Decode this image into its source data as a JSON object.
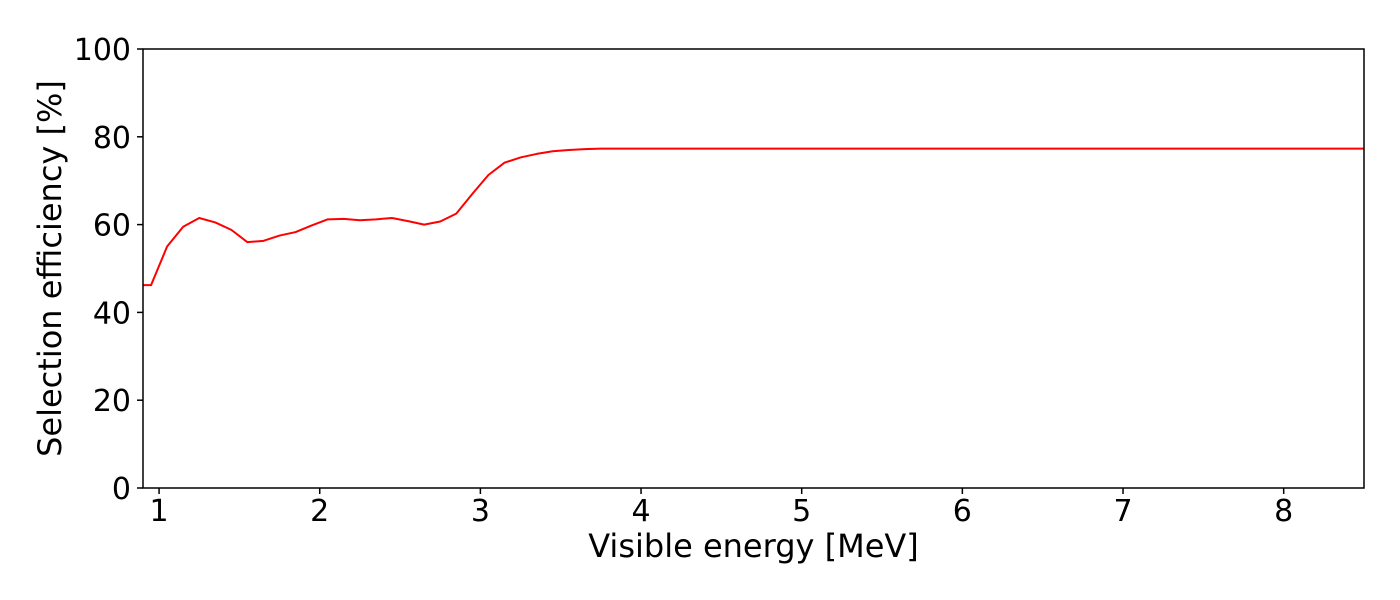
{
  "chart_data": {
    "type": "line",
    "title": "",
    "xlabel": "Visible energy [MeV]",
    "ylabel": "Selection efficiency [%]",
    "xlim": [
      0.9,
      8.5
    ],
    "ylim": [
      0,
      100
    ],
    "x_ticks": [
      1,
      2,
      3,
      4,
      5,
      6,
      7,
      8
    ],
    "y_ticks": [
      0,
      20,
      40,
      60,
      80,
      100
    ],
    "grid": false,
    "legend": "none",
    "series": [
      {
        "color": "#ff0000",
        "x": [
          0.9,
          0.95,
          1.05,
          1.15,
          1.25,
          1.35,
          1.45,
          1.55,
          1.65,
          1.75,
          1.85,
          1.95,
          2.05,
          2.15,
          2.25,
          2.35,
          2.45,
          2.55,
          2.65,
          2.75,
          2.85,
          2.95,
          3.05,
          3.15,
          3.25,
          3.35,
          3.45,
          3.55,
          3.65,
          3.75,
          3.85,
          3.95,
          4.05,
          4.5,
          5.0,
          5.5,
          6.0,
          6.5,
          7.0,
          7.5,
          8.0,
          8.5
        ],
        "y": [
          46.2,
          46.2,
          55.0,
          59.5,
          61.5,
          60.5,
          58.8,
          56.0,
          56.3,
          57.5,
          58.3,
          59.8,
          61.2,
          61.3,
          61.0,
          61.2,
          61.5,
          60.8,
          60.0,
          60.7,
          62.5,
          67.0,
          71.3,
          74.1,
          75.3,
          76.1,
          76.7,
          77.0,
          77.2,
          77.3,
          77.3,
          77.3,
          77.3,
          77.3,
          77.3,
          77.3,
          77.3,
          77.3,
          77.3,
          77.3,
          77.3,
          77.3
        ]
      }
    ]
  }
}
